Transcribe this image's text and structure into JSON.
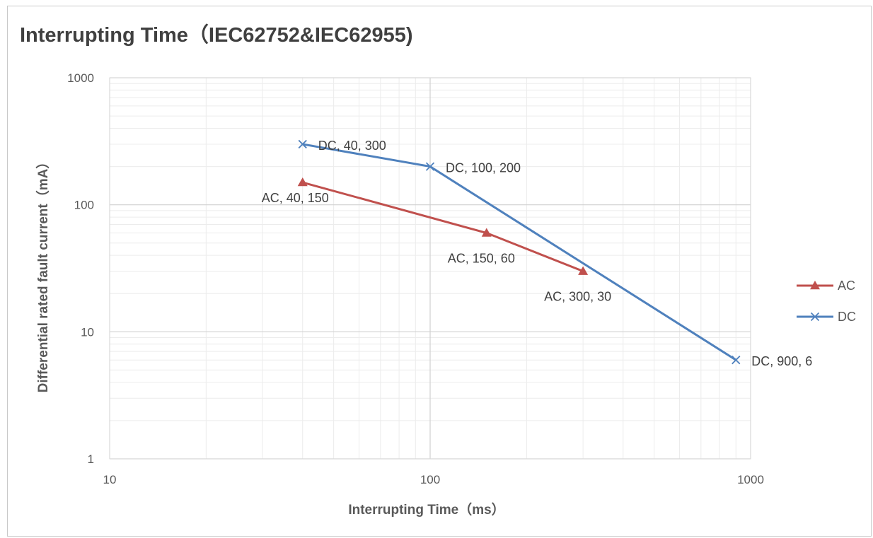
{
  "chart_data": {
    "type": "line",
    "title": "Interrupting Time（IEC62752&IEC62955)",
    "xlabel": "Interrupting Time（ms）",
    "ylabel": "Differential rated fault current（mA）",
    "xscale": "log",
    "yscale": "log",
    "xlim": [
      10,
      1000
    ],
    "ylim": [
      1,
      1000
    ],
    "x_ticks": [
      "10",
      "100",
      "1000"
    ],
    "y_ticks": [
      "1",
      "10",
      "100",
      "1000"
    ],
    "grid": true,
    "legend_position": "right",
    "series": [
      {
        "name": "AC",
        "color": "#c0504d",
        "marker": "triangle",
        "x": [
          40,
          150,
          300
        ],
        "y": [
          150,
          60,
          30
        ],
        "labels": [
          "AC, 40, 150",
          "AC, 150, 60",
          "AC, 300, 30"
        ]
      },
      {
        "name": "DC",
        "color": "#4f81bd",
        "marker": "x",
        "x": [
          40,
          100,
          900
        ],
        "y": [
          300,
          200,
          6
        ],
        "labels": [
          "DC, 40, 300",
          "DC, 100, 200",
          "DC, 900, 6"
        ]
      }
    ]
  }
}
